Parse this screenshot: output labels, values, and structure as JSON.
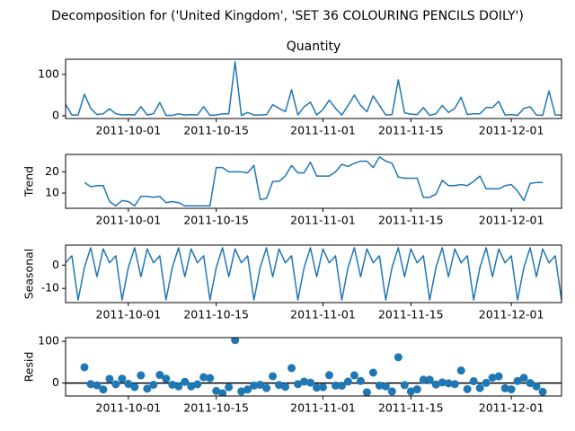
{
  "chart_data": {
    "type": "decomposition",
    "title": "Decomposition for ('United Kingdom', 'SET 36 COLOURING PENCILS DOILY')",
    "x": [
      "2011-09-21",
      "2011-09-22",
      "2011-09-23",
      "2011-09-24",
      "2011-09-25",
      "2011-09-26",
      "2011-09-27",
      "2011-09-28",
      "2011-09-29",
      "2011-09-30",
      "2011-10-01",
      "2011-10-02",
      "2011-10-03",
      "2011-10-04",
      "2011-10-05",
      "2011-10-06",
      "2011-10-07",
      "2011-10-08",
      "2011-10-09",
      "2011-10-10",
      "2011-10-11",
      "2011-10-12",
      "2011-10-13",
      "2011-10-14",
      "2011-10-15",
      "2011-10-16",
      "2011-10-17",
      "2011-10-18",
      "2011-10-19",
      "2011-10-20",
      "2011-10-21",
      "2011-10-22",
      "2011-10-23",
      "2011-10-24",
      "2011-10-25",
      "2011-10-26",
      "2011-10-27",
      "2011-10-28",
      "2011-10-29",
      "2011-10-30",
      "2011-10-31",
      "2011-11-01",
      "2011-11-02",
      "2011-11-03",
      "2011-11-04",
      "2011-11-05",
      "2011-11-06",
      "2011-11-07",
      "2011-11-08",
      "2011-11-09",
      "2011-11-10",
      "2011-11-11",
      "2011-11-12",
      "2011-11-13",
      "2011-11-14",
      "2011-11-15",
      "2011-11-16",
      "2011-11-17",
      "2011-11-18",
      "2011-11-19",
      "2011-11-20",
      "2011-11-21",
      "2011-11-22",
      "2011-11-23",
      "2011-11-24",
      "2011-11-25",
      "2011-11-26",
      "2011-11-27",
      "2011-11-28",
      "2011-11-29",
      "2011-11-30",
      "2011-12-01",
      "2011-12-02",
      "2011-12-03",
      "2011-12-04",
      "2011-12-05",
      "2011-12-06",
      "2011-12-07",
      "2011-12-08",
      "2011-12-09"
    ],
    "xlim": [
      "2011-09-21",
      "2011-12-09"
    ],
    "xticks": [
      "2011-10-01",
      "2011-10-15",
      "2011-11-01",
      "2011-11-15",
      "2011-12-01"
    ],
    "panels": [
      {
        "type": "line",
        "title": "Quantity",
        "color": "#1f77b4",
        "ylim": [
          -6.5,
          136.5
        ],
        "yticks": [
          0,
          100
        ],
        "values": [
          28,
          2,
          2,
          52,
          18,
          3,
          5,
          17,
          5,
          2,
          3,
          2,
          22,
          2,
          5,
          32,
          1,
          1,
          5,
          2,
          3,
          2,
          22,
          1,
          2,
          5,
          5,
          130,
          1,
          8,
          2,
          2,
          3,
          27,
          18,
          10,
          63,
          2,
          22,
          33,
          2,
          15,
          38,
          18,
          2,
          25,
          50,
          25,
          10,
          48,
          25,
          2,
          3,
          87,
          7,
          4,
          3,
          20,
          1,
          5,
          25,
          8,
          18,
          45,
          3,
          5,
          5,
          20,
          20,
          35,
          2,
          3,
          1,
          18,
          22,
          2,
          1,
          60,
          2,
          2
        ]
      },
      {
        "type": "line",
        "ylabel": "Trend",
        "color": "#1f77b4",
        "ylim": [
          2.85,
          28.15
        ],
        "yticks": [
          10,
          20
        ],
        "values": [
          null,
          null,
          null,
          15,
          13,
          13.5,
          13.5,
          6,
          4,
          6.5,
          6,
          4,
          8.5,
          8.5,
          8,
          8.5,
          5.5,
          6,
          5.5,
          4,
          4,
          4,
          4,
          4,
          22,
          22,
          20,
          20,
          20,
          19.5,
          23,
          7,
          7.5,
          15.5,
          15.5,
          18,
          23,
          19.5,
          19.5,
          24.5,
          18,
          18,
          18,
          20,
          23.5,
          22.5,
          24,
          25,
          25,
          22,
          27,
          25,
          24,
          17.5,
          17,
          17,
          17,
          8,
          8,
          9.5,
          16,
          13.5,
          13.5,
          14,
          13.5,
          15.5,
          18,
          12,
          12,
          12,
          13.5,
          14,
          11,
          6.5,
          14.5,
          15,
          15,
          null,
          null,
          null
        ]
      },
      {
        "type": "line",
        "ylabel": "Seasonal",
        "color": "#1f77b4",
        "ylim": [
          -16.1,
          8.6
        ],
        "yticks": [
          -10,
          0
        ],
        "values": [
          1,
          4,
          -15,
          -1,
          7.5,
          -5,
          7,
          1,
          4,
          -15,
          -1,
          7.5,
          -5,
          7,
          1,
          4,
          -15,
          -1,
          7.5,
          -5,
          7,
          1,
          4,
          -15,
          -1,
          7.5,
          -5,
          7,
          1,
          4,
          -15,
          -1,
          7.5,
          -5,
          7,
          1,
          4,
          -15,
          -1,
          7.5,
          -5,
          7,
          1,
          4,
          -15,
          -1,
          7.5,
          -5,
          7,
          1,
          4,
          -15,
          -1,
          7.5,
          -5,
          7,
          1,
          4,
          -15,
          -1,
          7.5,
          -5,
          7,
          1,
          4,
          -15,
          -1,
          7.5,
          -5,
          7,
          1,
          4,
          -15,
          -1,
          7.5,
          -5,
          7,
          1,
          4,
          -15
        ]
      },
      {
        "type": "scatter",
        "ylabel": "Resid",
        "color": "#1f77b4",
        "ylim": [
          -31,
          109
        ],
        "yticks": [
          0,
          100
        ],
        "hline": 0,
        "values": [
          null,
          null,
          null,
          38,
          -2.5,
          -5.5,
          -15.5,
          10,
          -3,
          10.5,
          -2,
          -9.5,
          18.5,
          -13.5,
          -4,
          19.5,
          10.5,
          -4,
          -8,
          3,
          -8,
          -3,
          14,
          12,
          -19,
          -24.5,
          -10,
          103,
          -20,
          -15.5,
          -6,
          -4,
          -12,
          16.5,
          -4.5,
          -9,
          36,
          -2.5,
          3.5,
          1,
          -11,
          -10,
          19,
          -6,
          -6.5,
          3.5,
          18.5,
          5,
          -22,
          25,
          -6,
          -8,
          -20,
          62,
          -5,
          -20,
          -15,
          8,
          8,
          -3.5,
          1.5,
          -0.5,
          -2.5,
          30,
          -14.5,
          4.5,
          -12,
          0.5,
          13,
          16,
          -12.5,
          -15,
          5,
          12.5,
          0,
          -8,
          -21,
          null,
          null,
          null
        ]
      }
    ]
  }
}
